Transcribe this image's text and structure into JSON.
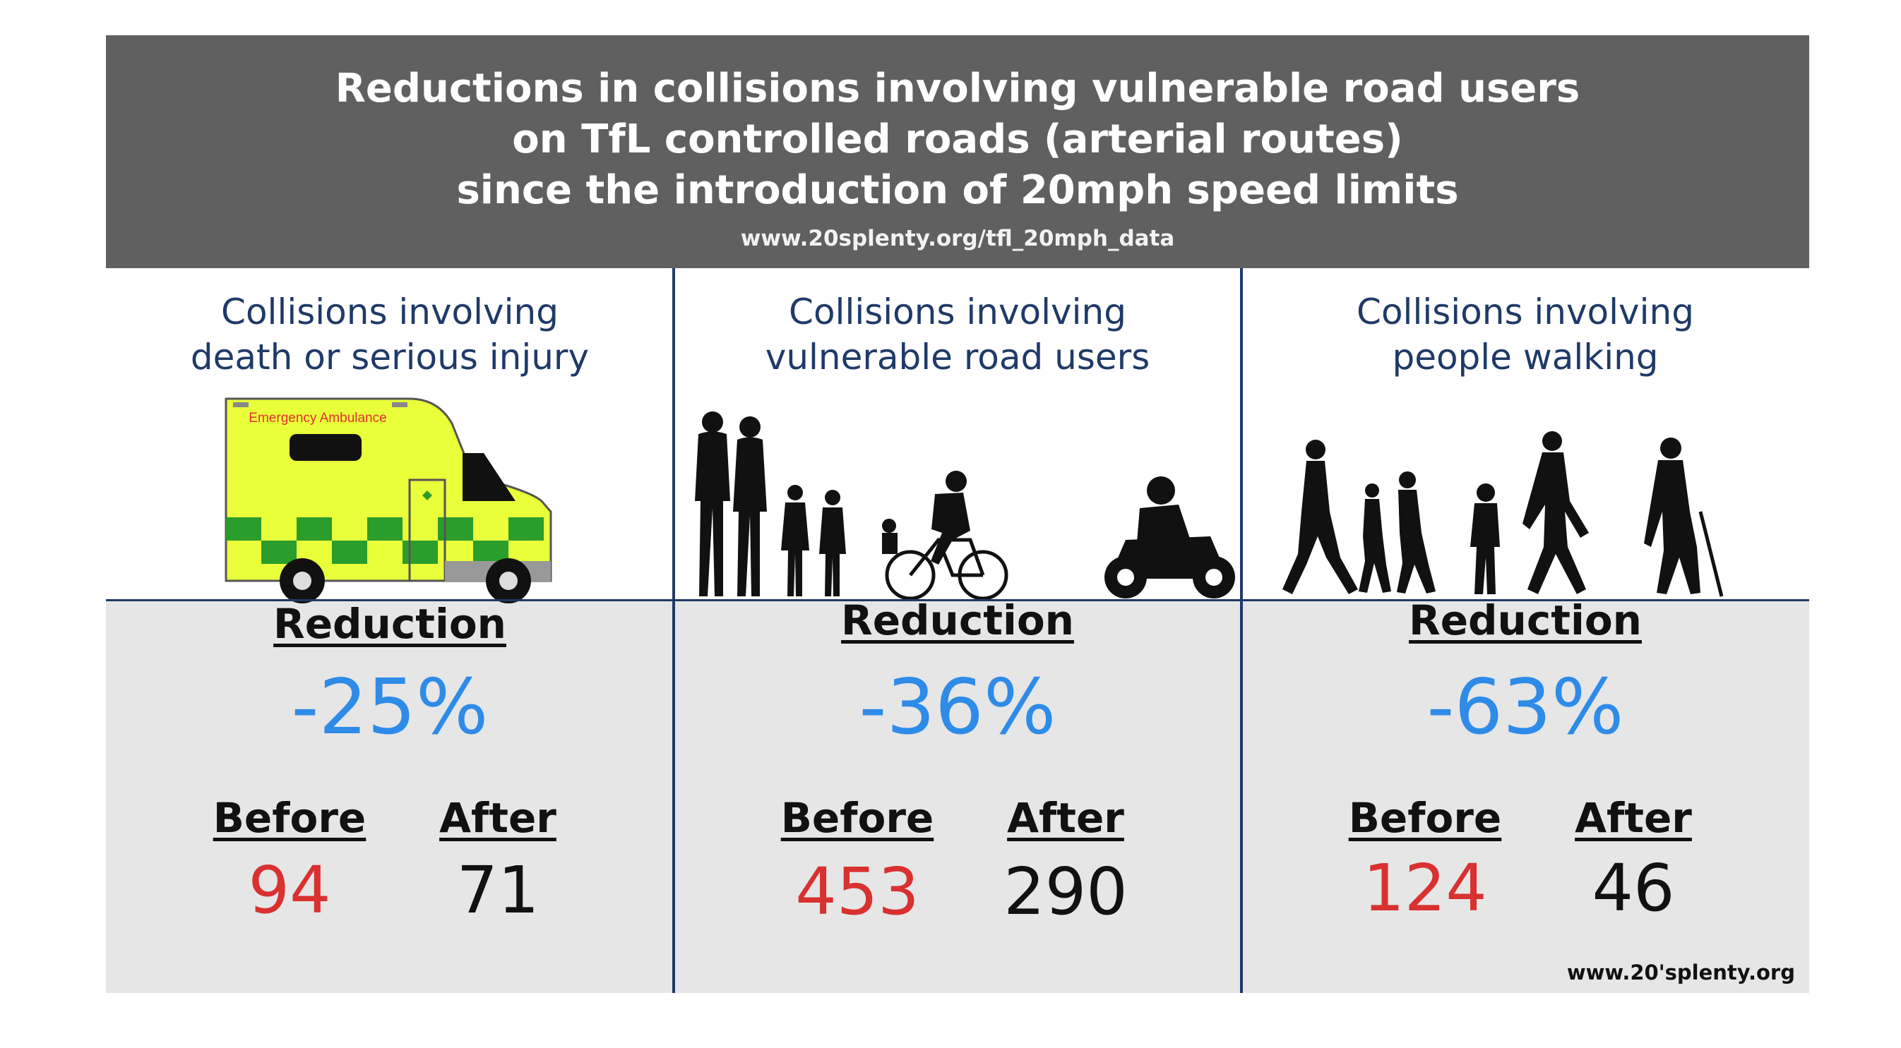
{
  "banner": {
    "title_lines": [
      "Reductions in collisions involving vulnerable road users",
      "on TfL controlled roads (arterial routes)",
      "since the introduction of 20mph speed limits"
    ],
    "url": "www.20splenty.org/tfl_20mph_data"
  },
  "panels": [
    {
      "heading_lines": [
        "Collisions involving",
        "death or serious injury"
      ],
      "illustration": "ambulance-icon",
      "ambulance_text": "Emergency Ambulance",
      "reduction_label": "Reduction",
      "reduction_value": "-25%",
      "before_label": "Before",
      "after_label": "After",
      "before": "94",
      "after": "71"
    },
    {
      "heading_lines": [
        "Collisions involving",
        "vulnerable road users"
      ],
      "illustration": "pedestrians-cyclist-motorcyclist-icon",
      "reduction_label": "Reduction",
      "reduction_value": "-36%",
      "before_label": "Before",
      "after_label": "After",
      "before": "453",
      "after": "290"
    },
    {
      "heading_lines": [
        "Collisions involving",
        "people walking"
      ],
      "illustration": "walking-people-icon",
      "reduction_label": "Reduction",
      "reduction_value": "-63%",
      "before_label": "Before",
      "after_label": "After",
      "before": "124",
      "after": "46"
    }
  ],
  "footer_url": "www.20'splenty.org",
  "colors": {
    "banner_bg": "#606060",
    "heading": "#1f3a68",
    "reduction": "#2e8be8",
    "before_value": "#d93030",
    "after_value": "#111111",
    "lower_bg": "#e6e6e6"
  }
}
